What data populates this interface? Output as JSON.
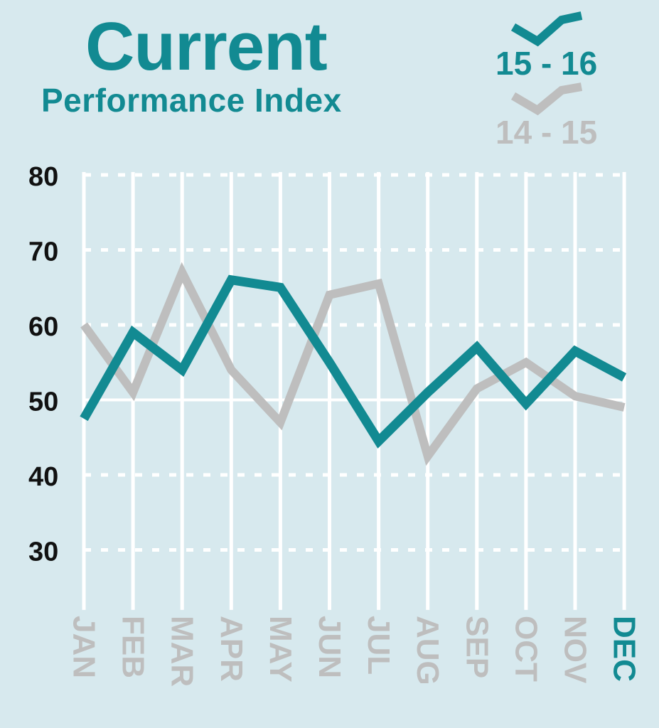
{
  "colors": {
    "background": "#d7e9ee",
    "teal": "#128a92",
    "gray": "#bebebe",
    "grid": "#ffffff",
    "tick_text": "#111111"
  },
  "chart_data": {
    "type": "line",
    "title": "Current",
    "subtitle": "Performance Index",
    "xlabel": "",
    "ylabel": "",
    "categories": [
      "JAN",
      "FEB",
      "MAR",
      "APR",
      "MAY",
      "JUN",
      "JUL",
      "AUG",
      "SEP",
      "OCT",
      "NOV",
      "DEC"
    ],
    "highlight_category": "DEC",
    "y_ticks": [
      80,
      70,
      60,
      50,
      40,
      30
    ],
    "ylim": [
      22,
      80
    ],
    "grid": true,
    "legend_position": "top-right",
    "series": [
      {
        "name": "14 - 15",
        "color": "#bebebe",
        "values": [
          60,
          51,
          67,
          54,
          47,
          64,
          65.5,
          42.5,
          51.5,
          55,
          50.5,
          49
        ]
      },
      {
        "name": "15 - 16",
        "color": "#128a92",
        "values": [
          47.5,
          59,
          54,
          66,
          65,
          55,
          44.5,
          51,
          57,
          49.5,
          56.5,
          53
        ]
      }
    ]
  }
}
